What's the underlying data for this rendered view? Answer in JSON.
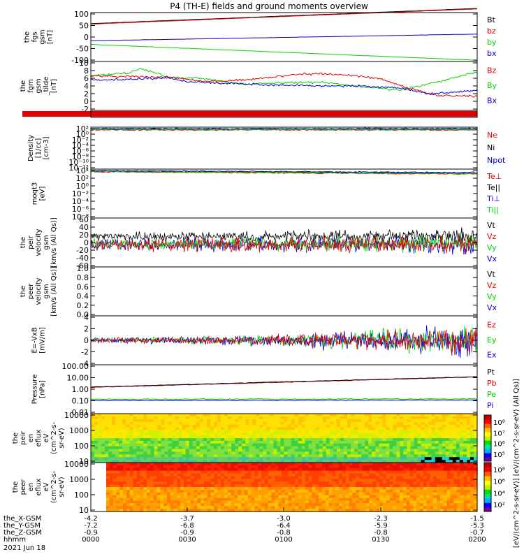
{
  "title": "P4 (TH-E) fields and ground moments overview",
  "colors": {
    "black": "#000000",
    "red": "#e00000",
    "green": "#00d000",
    "blue": "#0000d0",
    "grid": "#000000"
  },
  "panels": [
    {
      "id": "fgs",
      "ylabel": [
        "the",
        "fgs",
        "gsm",
        "[nT]"
      ],
      "yticks": [
        "100",
        "50",
        "0",
        "-50",
        "-100"
      ],
      "legend": [
        {
          "text": "Bt",
          "color": "#000000"
        },
        {
          "text": "bz",
          "color": "#e00000"
        },
        {
          "text": "by",
          "color": "#00d000"
        },
        {
          "text": "bx",
          "color": "#0000d0"
        }
      ]
    },
    {
      "id": "fgm",
      "ylabel": [
        "the",
        "fgm",
        "gsm",
        "_tilde",
        "[nT]"
      ],
      "yticks": [
        "10",
        "8",
        "6",
        "4",
        "2",
        "0",
        "-2"
      ],
      "legend": [
        {
          "text": "Bz",
          "color": "#e00000"
        },
        {
          "text": "By",
          "color": "#00d000"
        },
        {
          "text": "Bx",
          "color": "#0000d0"
        }
      ]
    },
    {
      "id": "bar",
      "ylabel": [],
      "yticks": [],
      "legend": []
    },
    {
      "id": "density",
      "ylabel": [
        "Density",
        "[1/cc]",
        "[cm-3]"
      ],
      "yticks": [
        "10²",
        "10⁰",
        "10⁻²",
        "10⁻⁴",
        "10⁻⁶",
        "10⁻⁸",
        "10⁻¹⁰",
        "10⁻¹²"
      ],
      "legend": [
        {
          "text": "Ne",
          "color": "#e00000"
        },
        {
          "text": "Ni",
          "color": "#000000"
        },
        {
          "text": "Npot",
          "color": "#0000d0"
        }
      ]
    },
    {
      "id": "temp",
      "ylabel": [
        "moqt3",
        "[eV]"
      ],
      "yticks": [
        "10⁴",
        "10²",
        "10⁰",
        "10⁻²",
        "10⁻⁴",
        "10⁻⁶",
        "10⁻⁸"
      ],
      "legend": [
        {
          "text": "Te⊥",
          "color": "#e00000"
        },
        {
          "text": "Te||",
          "color": "#000000"
        },
        {
          "text": "Ti⊥",
          "color": "#0000d0"
        },
        {
          "text": "Ti||",
          "color": "#00d000"
        }
      ]
    },
    {
      "id": "peir_vel",
      "ylabel": [
        "the",
        "peir",
        "velocity",
        "gsm",
        "[km/s (All Qs)]"
      ],
      "yticks": [
        "60",
        "40",
        "20",
        "0",
        "-20",
        "-40",
        "-60"
      ],
      "legend": [
        {
          "text": "Vt",
          "color": "#000000"
        },
        {
          "text": "Vz",
          "color": "#e00000"
        },
        {
          "text": "Vy",
          "color": "#00d000"
        },
        {
          "text": "Vx",
          "color": "#0000d0"
        }
      ]
    },
    {
      "id": "peer_vel",
      "ylabel": [
        "the",
        "peer",
        "velocity",
        "gsm",
        "[km/s (All Qs)]"
      ],
      "yticks": [
        "1.0",
        "0.8",
        "0.6",
        "0.4",
        "0.2",
        "0.0"
      ],
      "legend": [
        {
          "text": "Vt",
          "color": "#000000"
        },
        {
          "text": "Vz",
          "color": "#e00000"
        },
        {
          "text": "Vy",
          "color": "#00d000"
        },
        {
          "text": "Vx",
          "color": "#0000d0"
        }
      ]
    },
    {
      "id": "efield",
      "ylabel": [
        "E=-VxB",
        "[mV/m]"
      ],
      "yticks": [
        "4",
        "2",
        "0",
        "-2",
        "-4"
      ],
      "legend": [
        {
          "text": "Ez",
          "color": "#e00000"
        },
        {
          "text": "Ey",
          "color": "#00d000"
        },
        {
          "text": "Ex",
          "color": "#0000d0"
        }
      ]
    },
    {
      "id": "pressure",
      "ylabel": [
        "Pressure",
        "[nPa]"
      ],
      "yticks": [
        "100.00",
        "10.00",
        "1.00",
        "0.10",
        "0.01"
      ],
      "legend": [
        {
          "text": "Pt",
          "color": "#000000"
        },
        {
          "text": "Pb",
          "color": "#e00000"
        },
        {
          "text": "Pe",
          "color": "#00d000"
        },
        {
          "text": "Pi",
          "color": "#0000d0"
        }
      ]
    },
    {
      "id": "peir_eflux",
      "ylabel": [
        "the",
        "peir",
        "en",
        "eflux",
        "eV",
        "(cm^2-s-",
        "sr-eV)"
      ],
      "yticks": [
        "10000",
        "1000",
        "100",
        "10"
      ],
      "legend": []
    },
    {
      "id": "peer_eflux",
      "ylabel": [
        "the",
        "peer",
        "en",
        "eflux",
        "eV",
        "(cm^2-s-",
        "sr-eV)"
      ],
      "yticks": [
        "10000",
        "1000",
        "100",
        "10"
      ],
      "legend": []
    }
  ],
  "colorbar": {
    "ticks": [
      "10⁸",
      "10⁷",
      "10⁶",
      "10⁵"
    ],
    "ticks2": [
      "10⁸",
      "10⁶",
      "10⁴",
      "10²"
    ],
    "label": "[eV/(cm^2-s-sr-eV)] [eV/(cm^2-s-sr-eV) (All Qs)]"
  },
  "xaxis": {
    "rows": [
      {
        "label": "the_X-GSM",
        "values": [
          "-4.2",
          "-3.7",
          "-3.0",
          "-2.3",
          "-1.5"
        ]
      },
      {
        "label": "the_Y-GSM",
        "values": [
          "-7.2",
          "-6.8",
          "-6.4",
          "-5.9",
          "-5.3"
        ]
      },
      {
        "label": "the_Z-GSM",
        "values": [
          "-0.9",
          "-0.9",
          "-0.8",
          "-0.8",
          "-0.7"
        ]
      },
      {
        "label": "hhmm",
        "values": [
          "0000",
          "0030",
          "0100",
          "0130",
          "0200"
        ]
      }
    ],
    "date": "2021 Jun 18"
  },
  "chart_data": {
    "type": "line",
    "title": "P4 (TH-E) fields and ground moments overview",
    "x": [
      "0000",
      "0030",
      "0100",
      "0130",
      "0200"
    ],
    "xlabel": "hhmm",
    "series": [
      {
        "name": "Bt",
        "panel": "fgs",
        "values": [
          55,
          70,
          85,
          100,
          115
        ]
      },
      {
        "name": "bz",
        "panel": "fgs",
        "values": [
          55,
          70,
          85,
          100,
          115
        ]
      },
      {
        "name": "by",
        "panel": "fgs",
        "values": [
          -35,
          -50,
          -65,
          -80,
          -95
        ]
      },
      {
        "name": "bx",
        "panel": "fgs",
        "values": [
          -15,
          -8,
          0,
          6,
          12
        ]
      },
      {
        "name": "Bz",
        "panel": "fgm",
        "values": [
          6.5,
          5.5,
          7.0,
          5.0,
          1.5
        ]
      },
      {
        "name": "By",
        "panel": "fgm",
        "values": [
          6.0,
          6.0,
          4.5,
          3.5,
          7.0
        ]
      },
      {
        "name": "Bx",
        "panel": "fgm",
        "values": [
          5.5,
          5.5,
          4.0,
          3.5,
          3.0
        ]
      },
      {
        "name": "Pt",
        "panel": "pressure",
        "values": [
          1.5,
          2.5,
          3.5,
          5.5,
          10
        ]
      },
      {
        "name": "Pe",
        "panel": "pressure",
        "values": [
          0.15,
          0.18,
          0.22,
          0.2,
          0.15
        ]
      },
      {
        "name": "Pi",
        "panel": "pressure",
        "values": [
          0.12,
          0.13,
          0.15,
          0.15,
          0.13
        ]
      }
    ],
    "ylim": {
      "fgs": [
        -100,
        100
      ],
      "fgm": [
        -2,
        10
      ],
      "peir_vel": [
        -60,
        60
      ],
      "peer_vel": [
        0,
        1
      ],
      "efield": [
        -4,
        4
      ],
      "pressure": [
        0.01,
        100
      ]
    }
  }
}
